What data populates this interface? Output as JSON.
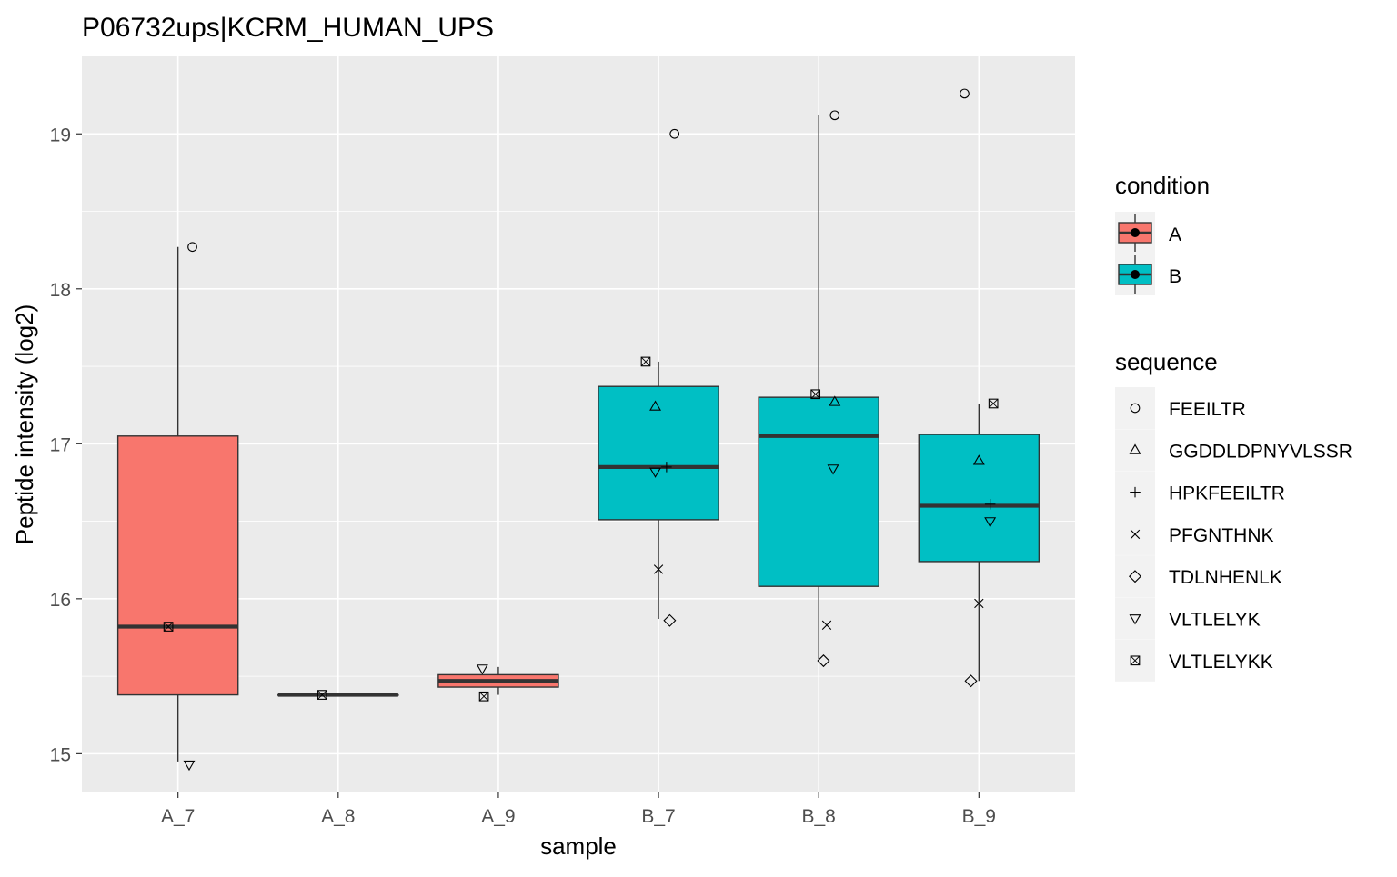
{
  "chart_data": {
    "type": "boxplot",
    "title": "P06732ups|KCRM_HUMAN_UPS",
    "xlabel": "sample",
    "ylabel": "Peptide intensity (log2)",
    "categories": [
      "A_7",
      "A_8",
      "A_9",
      "B_7",
      "B_8",
      "B_9"
    ],
    "ylim": [
      14.75,
      19.5
    ],
    "yticks": [
      15,
      16,
      17,
      18,
      19
    ],
    "grid": true,
    "legend_position": "right",
    "colors": {
      "A": "#F8766D",
      "B": "#00BFC4",
      "panel": "#EBEBEB"
    },
    "boxes": [
      {
        "sample": "A_7",
        "condition": "A",
        "q1": 15.38,
        "median": 15.82,
        "q3": 17.05,
        "whisker_low": 14.95,
        "whisker_high": 18.27
      },
      {
        "sample": "A_8",
        "condition": "A",
        "q1": 15.38,
        "median": 15.38,
        "q3": 15.38,
        "whisker_low": 15.38,
        "whisker_high": 15.38
      },
      {
        "sample": "A_9",
        "condition": "A",
        "q1": 15.43,
        "median": 15.47,
        "q3": 15.51,
        "whisker_low": 15.38,
        "whisker_high": 15.56
      },
      {
        "sample": "B_7",
        "condition": "B",
        "q1": 16.51,
        "median": 16.85,
        "q3": 17.37,
        "whisker_low": 15.87,
        "whisker_high": 17.53
      },
      {
        "sample": "B_8",
        "condition": "B",
        "q1": 16.08,
        "median": 17.05,
        "q3": 17.3,
        "whisker_low": 15.61,
        "whisker_high": 19.12
      },
      {
        "sample": "B_9",
        "condition": "B",
        "q1": 16.24,
        "median": 16.6,
        "q3": 17.06,
        "whisker_low": 15.47,
        "whisker_high": 17.26
      }
    ],
    "points": [
      {
        "sample": "A_7",
        "sequence": "FEEILTR",
        "y": 18.27,
        "jitter": 0.09
      },
      {
        "sample": "A_7",
        "sequence": "VLTLELYK",
        "y": 14.93,
        "jitter": 0.07
      },
      {
        "sample": "A_7",
        "sequence": "VLTLELYKK",
        "y": 15.82,
        "jitter": -0.06
      },
      {
        "sample": "A_8",
        "sequence": "VLTLELYKK",
        "y": 15.38,
        "jitter": -0.1
      },
      {
        "sample": "A_9",
        "sequence": "VLTLELYK",
        "y": 15.55,
        "jitter": -0.1
      },
      {
        "sample": "A_9",
        "sequence": "VLTLELYKK",
        "y": 15.37,
        "jitter": -0.09
      },
      {
        "sample": "B_7",
        "sequence": "FEEILTR",
        "y": 19.0,
        "jitter": 0.1
      },
      {
        "sample": "B_7",
        "sequence": "GGDDLDPNYVLSSR",
        "y": 17.24,
        "jitter": -0.02
      },
      {
        "sample": "B_7",
        "sequence": "HPKFEEILTR",
        "y": 16.85,
        "jitter": 0.05
      },
      {
        "sample": "B_7",
        "sequence": "PFGNTHNK",
        "y": 16.19,
        "jitter": 0.0
      },
      {
        "sample": "B_7",
        "sequence": "TDLNHENLK",
        "y": 15.86,
        "jitter": 0.07
      },
      {
        "sample": "B_7",
        "sequence": "VLTLELYK",
        "y": 16.82,
        "jitter": -0.02
      },
      {
        "sample": "B_7",
        "sequence": "VLTLELYKK",
        "y": 17.53,
        "jitter": -0.08
      },
      {
        "sample": "B_8",
        "sequence": "FEEILTR",
        "y": 19.12,
        "jitter": 0.1
      },
      {
        "sample": "B_8",
        "sequence": "GGDDLDPNYVLSSR",
        "y": 17.27,
        "jitter": 0.1
      },
      {
        "sample": "B_8",
        "sequence": "PFGNTHNK",
        "y": 15.83,
        "jitter": 0.05
      },
      {
        "sample": "B_8",
        "sequence": "TDLNHENLK",
        "y": 15.6,
        "jitter": 0.03
      },
      {
        "sample": "B_8",
        "sequence": "VLTLELYK",
        "y": 16.84,
        "jitter": 0.09
      },
      {
        "sample": "B_8",
        "sequence": "VLTLELYKK",
        "y": 17.32,
        "jitter": -0.02
      },
      {
        "sample": "B_9",
        "sequence": "FEEILTR",
        "y": 19.26,
        "jitter": -0.09
      },
      {
        "sample": "B_9",
        "sequence": "GGDDLDPNYVLSSR",
        "y": 16.89,
        "jitter": 0.0
      },
      {
        "sample": "B_9",
        "sequence": "HPKFEEILTR",
        "y": 16.61,
        "jitter": 0.07
      },
      {
        "sample": "B_9",
        "sequence": "PFGNTHNK",
        "y": 15.97,
        "jitter": 0.0
      },
      {
        "sample": "B_9",
        "sequence": "TDLNHENLK",
        "y": 15.47,
        "jitter": -0.05
      },
      {
        "sample": "B_9",
        "sequence": "VLTLELYK",
        "y": 16.5,
        "jitter": 0.07
      },
      {
        "sample": "B_9",
        "sequence": "VLTLELYKK",
        "y": 17.26,
        "jitter": 0.09
      }
    ],
    "legend_condition": {
      "title": "condition",
      "items": [
        {
          "label": "A"
        },
        {
          "label": "B"
        }
      ]
    },
    "legend_sequence": {
      "title": "sequence",
      "items": [
        {
          "label": "FEEILTR",
          "shape": "circle"
        },
        {
          "label": "GGDDLDPNYVLSSR",
          "shape": "triangle"
        },
        {
          "label": "HPKFEEILTR",
          "shape": "plus"
        },
        {
          "label": "PFGNTHNK",
          "shape": "cross"
        },
        {
          "label": "TDLNHENLK",
          "shape": "diamond"
        },
        {
          "label": "VLTLELYK",
          "shape": "triangle-down"
        },
        {
          "label": "VLTLELYKK",
          "shape": "square-cross"
        }
      ]
    }
  }
}
